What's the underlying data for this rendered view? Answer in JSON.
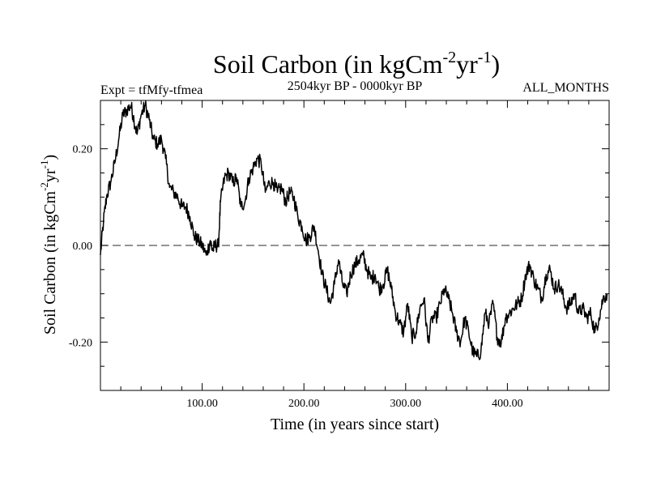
{
  "chart_data": {
    "type": "line",
    "title": "Soil Carbon (in kgCm",
    "title_sup1": "-2",
    "title_mid": "yr",
    "title_sup2": "-1",
    "title_end": ")",
    "left_subtitle": "Expt = tfMfy-tfmea",
    "center_subtitle": "2504kyr BP - 0000kyr BP",
    "right_subtitle": "ALL_MONTHS",
    "xlabel": "Time (in years since start)",
    "ylabel": "Soil Carbon (in kgCm",
    "ylabel_sup1": "-2",
    "ylabel_mid": "yr",
    "ylabel_sup2": "-1",
    "ylabel_end": ")",
    "xlim": [
      0,
      500
    ],
    "ylim": [
      -0.3,
      0.3
    ],
    "x_ticks": [
      100,
      200,
      300,
      400
    ],
    "x_tick_labels": [
      "100.00",
      "200.00",
      "300.00",
      "400.00"
    ],
    "y_ticks": [
      -0.2,
      0.0,
      0.2
    ],
    "y_tick_labels": [
      "-0.20",
      "0.00",
      "0.20"
    ],
    "zero_line": 0.0,
    "series": [
      {
        "name": "tfMfy-tfmea",
        "x": [
          0,
          3,
          6,
          10,
          14,
          18,
          22,
          26,
          30,
          33,
          36,
          40,
          44,
          48,
          52,
          56,
          60,
          64,
          68,
          72,
          76,
          80,
          84,
          88,
          92,
          96,
          100,
          104,
          108,
          110,
          113,
          116,
          118,
          122,
          126,
          130,
          134,
          138,
          142,
          146,
          150,
          154,
          158,
          162,
          166,
          170,
          174,
          178,
          182,
          186,
          190,
          194,
          198,
          202,
          206,
          210,
          214,
          218,
          222,
          226,
          230,
          234,
          238,
          242,
          246,
          250,
          254,
          258,
          262,
          266,
          270,
          274,
          278,
          282,
          286,
          290,
          294,
          298,
          302,
          306,
          310,
          314,
          318,
          322,
          326,
          330,
          334,
          338,
          342,
          346,
          350,
          354,
          358,
          362,
          366,
          370,
          374,
          378,
          382,
          386,
          390,
          394,
          398,
          402,
          406,
          410,
          414,
          418,
          422,
          426,
          430,
          434,
          438,
          442,
          446,
          450,
          454,
          458,
          462,
          466,
          470,
          474,
          478,
          482,
          486,
          490,
          494,
          498
        ],
        "values": [
          -0.02,
          0.05,
          0.1,
          0.13,
          0.17,
          0.22,
          0.27,
          0.28,
          0.29,
          0.26,
          0.23,
          0.27,
          0.29,
          0.26,
          0.22,
          0.21,
          0.22,
          0.18,
          0.12,
          0.11,
          0.1,
          0.08,
          0.08,
          0.06,
          0.02,
          0.01,
          0.0,
          -0.02,
          0.01,
          -0.01,
          0.0,
          0.0,
          0.09,
          0.14,
          0.15,
          0.13,
          0.14,
          0.08,
          0.09,
          0.14,
          0.16,
          0.18,
          0.17,
          0.11,
          0.13,
          0.13,
          0.11,
          0.12,
          0.09,
          0.11,
          0.1,
          0.06,
          0.04,
          0.01,
          0.02,
          0.04,
          -0.01,
          -0.06,
          -0.09,
          -0.12,
          -0.08,
          -0.03,
          -0.08,
          -0.1,
          -0.06,
          -0.04,
          -0.03,
          -0.02,
          -0.05,
          -0.07,
          -0.06,
          -0.09,
          -0.08,
          -0.05,
          -0.09,
          -0.14,
          -0.16,
          -0.18,
          -0.12,
          -0.19,
          -0.18,
          -0.13,
          -0.11,
          -0.2,
          -0.15,
          -0.15,
          -0.12,
          -0.09,
          -0.11,
          -0.14,
          -0.18,
          -0.2,
          -0.15,
          -0.18,
          -0.22,
          -0.23,
          -0.22,
          -0.14,
          -0.16,
          -0.12,
          -0.19,
          -0.2,
          -0.15,
          -0.14,
          -0.13,
          -0.12,
          -0.11,
          -0.06,
          -0.04,
          -0.07,
          -0.09,
          -0.11,
          -0.06,
          -0.05,
          -0.09,
          -0.08,
          -0.1,
          -0.13,
          -0.12,
          -0.1,
          -0.14,
          -0.13,
          -0.15,
          -0.14,
          -0.18,
          -0.15,
          -0.11,
          -0.1
        ]
      }
    ]
  }
}
